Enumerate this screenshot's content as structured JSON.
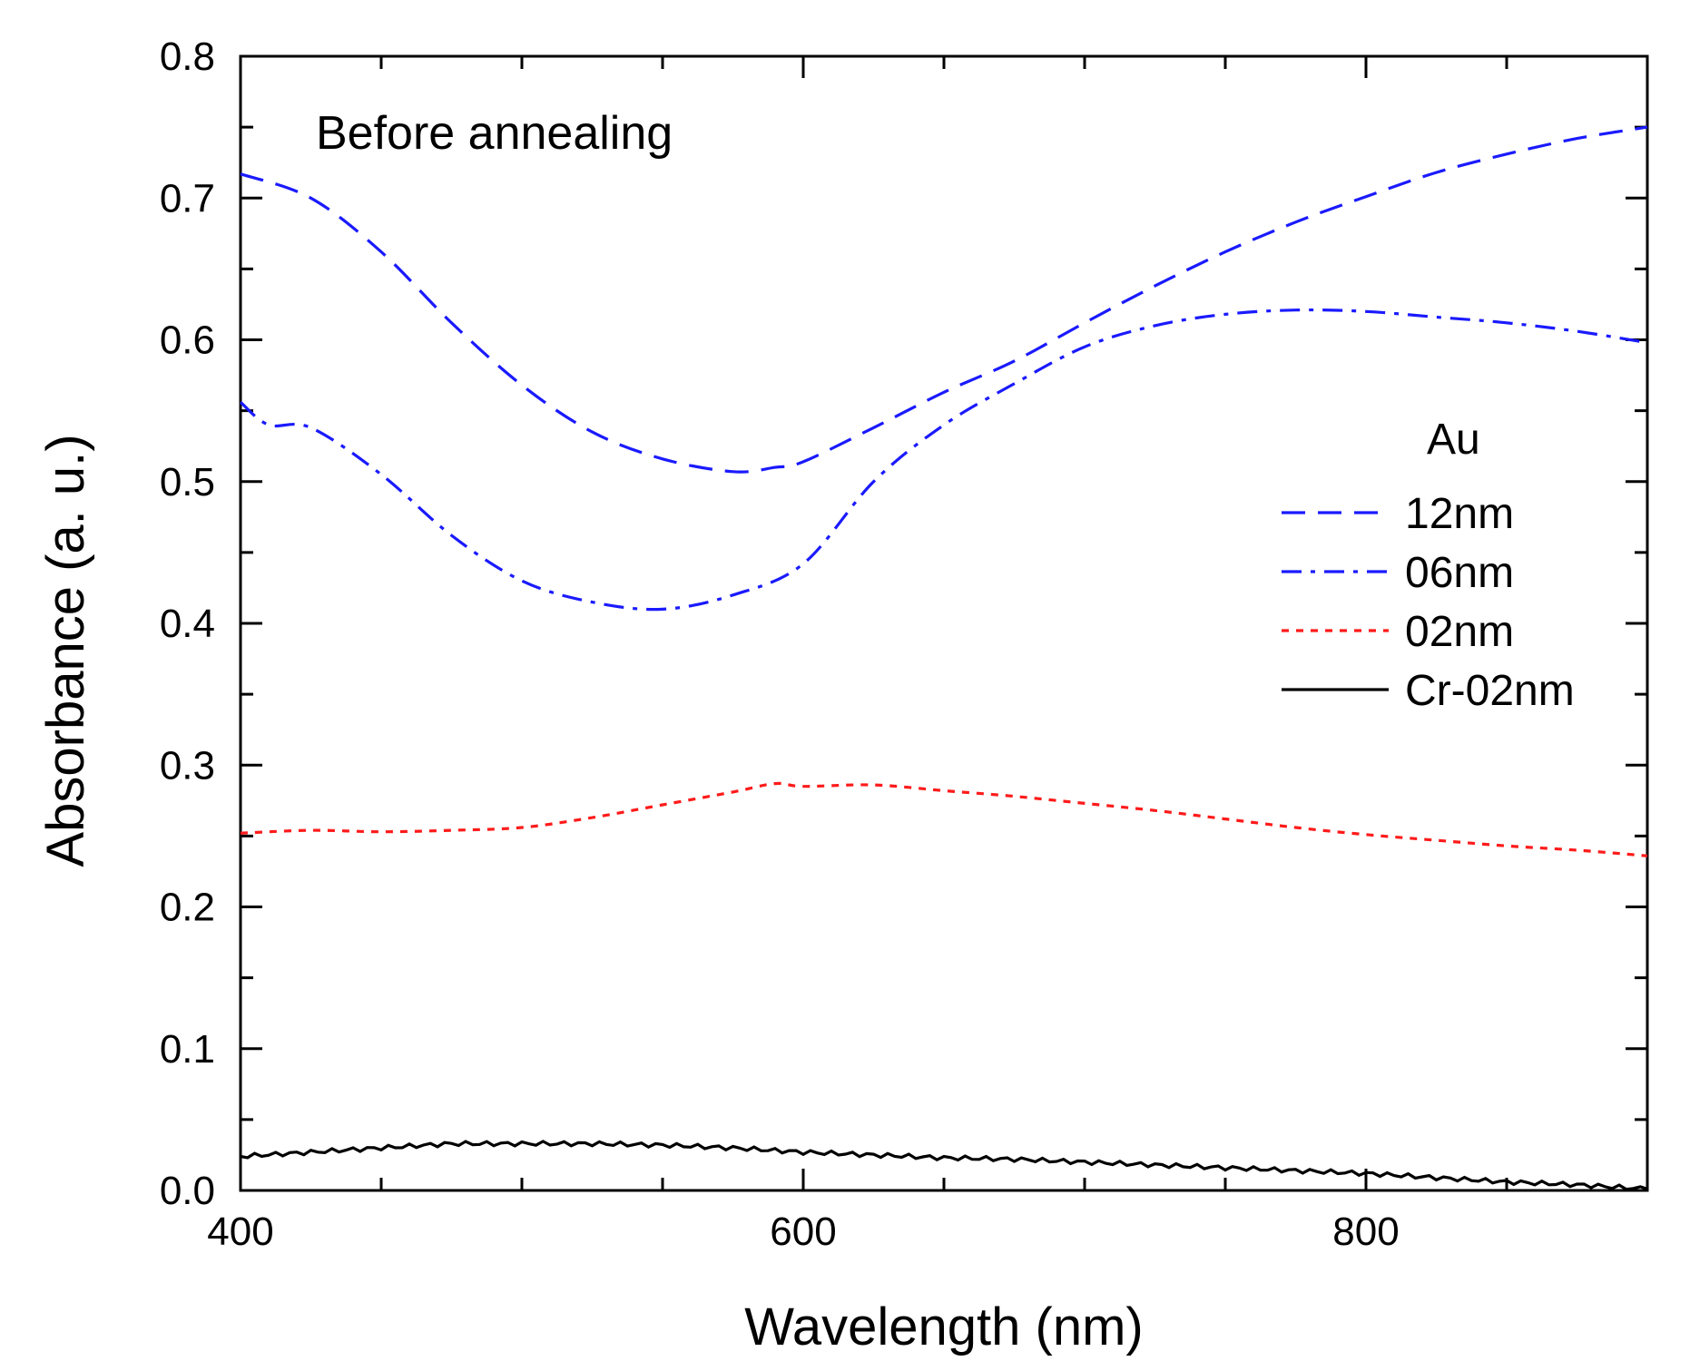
{
  "chart_data": {
    "type": "line",
    "title": "",
    "annotation": "Before annealing",
    "xlabel": "Wavelength (nm)",
    "ylabel": "Absorbance (a. u.)",
    "xlim": [
      400,
      900
    ],
    "ylim": [
      0.0,
      0.8
    ],
    "xticks": [
      400,
      600,
      800
    ],
    "xtick_labels": [
      "400",
      "600",
      "800"
    ],
    "yticks": [
      0.0,
      0.1,
      0.2,
      0.3,
      0.4,
      0.5,
      0.6,
      0.7,
      0.8
    ],
    "ytick_labels": [
      "0.0",
      "0.1",
      "0.2",
      "0.3",
      "0.4",
      "0.5",
      "0.6",
      "0.7",
      "0.8"
    ],
    "grid": false,
    "legend_title": "Au",
    "legend_position": "right",
    "series": [
      {
        "name": "12nm",
        "color": "#1a1aff",
        "style": "dash",
        "x": [
          400,
          425,
          450,
          475,
          500,
          525,
          550,
          575,
          590,
          600,
          625,
          650,
          675,
          700,
          725,
          750,
          775,
          800,
          825,
          850,
          875,
          900
        ],
        "y": [
          0.717,
          0.7,
          0.662,
          0.612,
          0.568,
          0.535,
          0.516,
          0.507,
          0.51,
          0.514,
          0.538,
          0.563,
          0.585,
          0.612,
          0.638,
          0.662,
          0.683,
          0.701,
          0.718,
          0.731,
          0.742,
          0.75
        ]
      },
      {
        "name": "06nm",
        "color": "#1a1aff",
        "style": "dashdot",
        "x": [
          400,
          410,
          425,
          450,
          475,
          500,
          525,
          550,
          575,
          600,
          625,
          650,
          675,
          700,
          725,
          750,
          775,
          800,
          825,
          850,
          875,
          900
        ],
        "y": [
          0.556,
          0.54,
          0.538,
          0.505,
          0.462,
          0.43,
          0.415,
          0.41,
          0.42,
          0.442,
          0.5,
          0.54,
          0.569,
          0.595,
          0.61,
          0.618,
          0.621,
          0.62,
          0.616,
          0.612,
          0.606,
          0.598
        ]
      },
      {
        "name": "02nm",
        "color": "#ff1a1a",
        "style": "dot",
        "x": [
          400,
          425,
          450,
          475,
          500,
          525,
          550,
          575,
          590,
          600,
          625,
          650,
          675,
          700,
          725,
          750,
          775,
          800,
          825,
          850,
          875,
          900
        ],
        "y": [
          0.252,
          0.254,
          0.253,
          0.254,
          0.256,
          0.263,
          0.272,
          0.281,
          0.287,
          0.285,
          0.286,
          0.282,
          0.278,
          0.273,
          0.268,
          0.262,
          0.256,
          0.251,
          0.247,
          0.243,
          0.24,
          0.236
        ]
      },
      {
        "name": "Cr-02nm",
        "color": "#000000",
        "style": "solid",
        "x": [
          400,
          425,
          450,
          475,
          500,
          525,
          550,
          575,
          600,
          625,
          650,
          675,
          700,
          725,
          750,
          775,
          800,
          825,
          850,
          875,
          900
        ],
        "y": [
          0.024,
          0.027,
          0.03,
          0.033,
          0.033,
          0.033,
          0.032,
          0.03,
          0.027,
          0.025,
          0.023,
          0.022,
          0.02,
          0.018,
          0.016,
          0.014,
          0.012,
          0.009,
          0.006,
          0.004,
          0.001
        ]
      }
    ]
  }
}
